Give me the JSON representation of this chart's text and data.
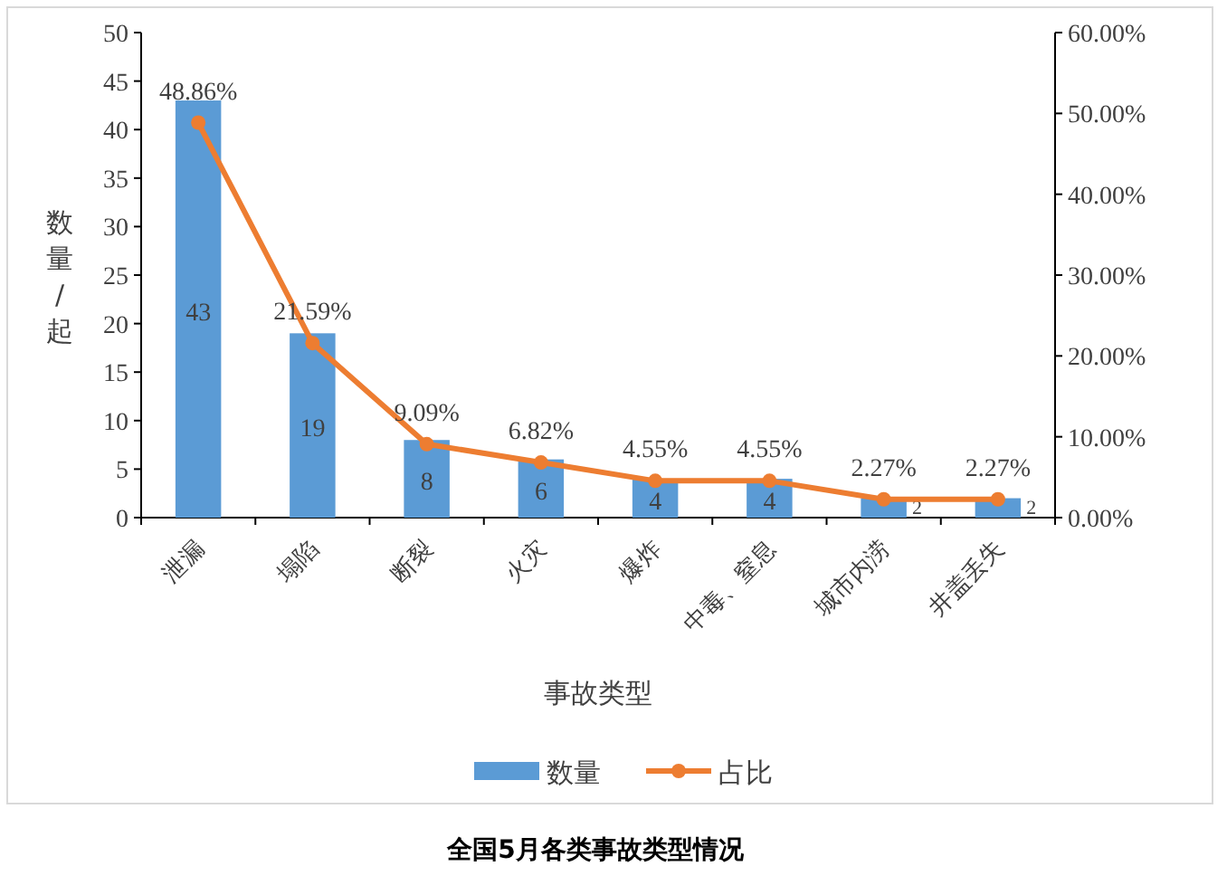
{
  "chart_data": {
    "type": "bar",
    "title": "全国5月各类事故类型情况",
    "xlabel": "事故类型",
    "ylabel": "数量/起",
    "categories": [
      "泄漏",
      "塌陷",
      "断裂",
      "火灾",
      "爆炸",
      "中毒、窒息",
      "城市内涝",
      "井盖丢失"
    ],
    "series": [
      {
        "name": "数量",
        "color": "#5b9bd5",
        "values": [
          43,
          19,
          8,
          6,
          4,
          4,
          2,
          2
        ],
        "value_labels": [
          "43",
          "19",
          "8",
          "6",
          "4",
          "4",
          "2",
          "2"
        ]
      },
      {
        "name": "占比",
        "type": "line",
        "axis": "y2",
        "color": "#ed7d31",
        "marker": "circle",
        "values": [
          48.86,
          21.59,
          9.09,
          6.82,
          4.55,
          4.55,
          2.27,
          2.27
        ],
        "value_labels": [
          "48.86%",
          "21.59%",
          "9.09%",
          "6.82%",
          "4.55%",
          "4.55%",
          "2.27%",
          "2.27%"
        ]
      }
    ],
    "ylim": [
      0,
      50
    ],
    "yticks": [
      0,
      5,
      10,
      15,
      20,
      25,
      30,
      35,
      40,
      45,
      50
    ],
    "y2lim": [
      0,
      60
    ],
    "y2ticks": [
      {
        "value": 0,
        "label": "0.00%"
      },
      {
        "value": 10,
        "label": "10.00%"
      },
      {
        "value": 20,
        "label": "20.00%"
      },
      {
        "value": 30,
        "label": "30.00%"
      },
      {
        "value": 40,
        "label": "40.00%"
      },
      {
        "value": 50,
        "label": "50.00%"
      },
      {
        "value": 60,
        "label": "60.00%"
      }
    ],
    "grid": false,
    "legend": "bottom"
  }
}
